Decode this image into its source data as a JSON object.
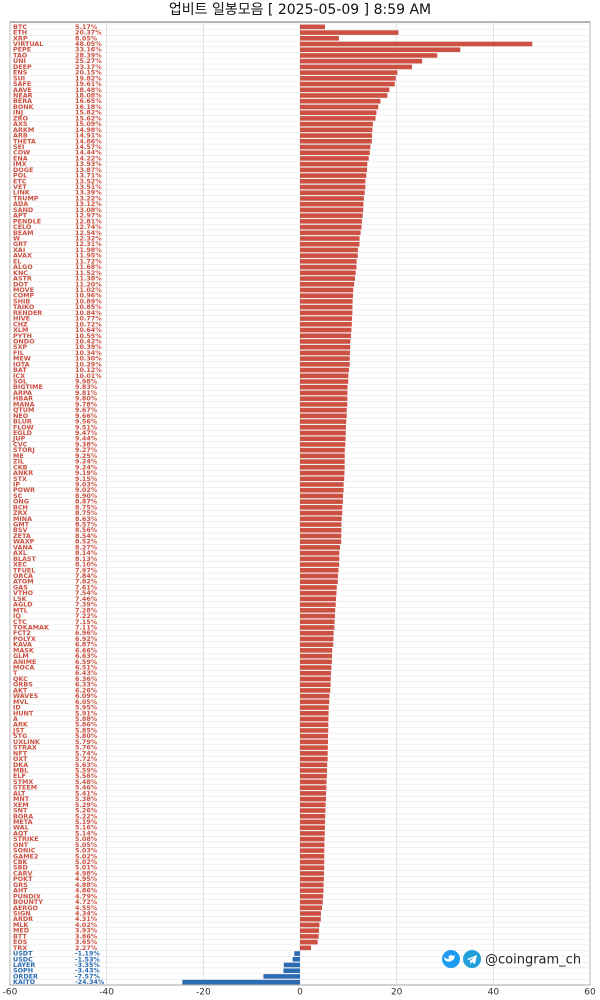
{
  "chart_data": {
    "type": "barh",
    "title": "업비트 일봉모음 [ 2025-05-09 ]  8:59 AM",
    "watermark": "@coingram_ch",
    "positive_color": "#cd5142",
    "negative_color": "#2b6cb3",
    "xlim": [
      -60,
      60
    ],
    "xticks": [
      -60,
      -40,
      -20,
      0,
      20,
      40,
      60
    ],
    "grid": true,
    "categories": [
      "BTC",
      "ETH",
      "XRP",
      "VIRTUAL",
      "PEPE",
      "TAO",
      "UNI",
      "DEEP",
      "ENS",
      "SUI",
      "SAFE",
      "AAVE",
      "NEAR",
      "BERA",
      "BONK",
      "INJ",
      "ZRO",
      "AXS",
      "ARKM",
      "ARB",
      "THETA",
      "SEI",
      "COW",
      "ENA",
      "IMX",
      "DOGE",
      "POL",
      "ETC",
      "VET",
      "LINK",
      "TRUMP",
      "ADA",
      "SAND",
      "APT",
      "PENDLE",
      "CELO",
      "BEAM",
      "W",
      "GRT",
      "XAI",
      "AVAX",
      "EL",
      "ALGO",
      "KNC",
      "ASTR",
      "DOT",
      "MOVE",
      "COMP",
      "SHIB",
      "TAIKO",
      "RENDER",
      "HIVE",
      "CHZ",
      "XLM",
      "PYTH",
      "ONDO",
      "SXP",
      "FIL",
      "MEW",
      "IOTA",
      "BAT",
      "ICX",
      "SOL",
      "BIGTIME",
      "ARPA",
      "HBAR",
      "MANA",
      "QTUM",
      "NEO",
      "BLUR",
      "FLOW",
      "EGLD",
      "JUP",
      "CVC",
      "STORJ",
      "ME",
      "ZIL",
      "CKB",
      "ANKR",
      "STX",
      "IP",
      "POWR",
      "SC",
      "ONG",
      "BCH",
      "ZRX",
      "MINA",
      "GMT",
      "BSV",
      "ZETA",
      "WAXP",
      "VANA",
      "AXL",
      "BLAST",
      "XEC",
      "TFUEL",
      "ORCA",
      "ATOM",
      "GAS",
      "VTHO",
      "LSK",
      "AGLD",
      "MTL",
      "IQ",
      "CTC",
      "TOKAMAK",
      "FCT2",
      "POLYX",
      "KAVA",
      "MASK",
      "GLM",
      "ANIME",
      "MOCA",
      "T",
      "QKC",
      "ORBS",
      "AKT",
      "WAVES",
      "MVL",
      "ID",
      "HUNT",
      "A",
      "ARK",
      "JST",
      "STG",
      "UXLINK",
      "STRAX",
      "NFT",
      "OXT",
      "DKA",
      "MBL",
      "ELF",
      "STMX",
      "STEEM",
      "ALT",
      "MNT",
      "XEM",
      "SNT",
      "BORA",
      "META",
      "WAL",
      "AQT",
      "STRIKE",
      "ONT",
      "SONIC",
      "GAME2",
      "CBK",
      "SBD",
      "CARV",
      "POKT",
      "GRS",
      "AHT",
      "PUNDIX",
      "BOUNTY",
      "AERGO",
      "SIGN",
      "ARDR",
      "MLK",
      "MED",
      "BTT",
      "EOS",
      "TRX",
      "USDT",
      "USDC",
      "LAYER",
      "SOPH",
      "ORDER",
      "KAITO"
    ],
    "values": [
      5.17,
      20.37,
      8.05,
      48.05,
      33.16,
      28.39,
      25.27,
      23.17,
      20.15,
      19.82,
      19.61,
      18.48,
      18.08,
      16.65,
      16.18,
      15.82,
      15.62,
      15.09,
      14.98,
      14.91,
      14.86,
      14.57,
      14.44,
      14.22,
      13.93,
      13.87,
      13.71,
      13.52,
      13.51,
      13.39,
      13.22,
      13.12,
      13.08,
      12.97,
      12.81,
      12.74,
      12.54,
      12.32,
      12.31,
      11.98,
      11.95,
      11.72,
      11.68,
      11.52,
      11.38,
      11.2,
      11.02,
      10.96,
      10.89,
      10.85,
      10.84,
      10.77,
      10.72,
      10.64,
      10.55,
      10.42,
      10.39,
      10.34,
      10.3,
      10.29,
      10.12,
      10.01,
      9.98,
      9.83,
      9.81,
      9.8,
      9.78,
      9.67,
      9.66,
      9.56,
      9.51,
      9.47,
      9.44,
      9.38,
      9.27,
      9.25,
      9.24,
      9.24,
      9.19,
      9.15,
      9.03,
      9.02,
      8.9,
      8.87,
      8.75,
      8.75,
      8.63,
      8.57,
      8.56,
      8.54,
      8.52,
      8.27,
      8.14,
      8.13,
      8.1,
      7.97,
      7.84,
      7.82,
      7.61,
      7.54,
      7.46,
      7.39,
      7.28,
      7.22,
      7.15,
      7.11,
      6.96,
      6.92,
      6.87,
      6.66,
      6.63,
      6.59,
      6.51,
      6.43,
      6.36,
      6.33,
      6.26,
      6.09,
      6.05,
      5.95,
      5.91,
      5.88,
      5.86,
      5.85,
      5.8,
      5.79,
      5.76,
      5.74,
      5.72,
      5.63,
      5.59,
      5.56,
      5.48,
      5.46,
      5.41,
      5.38,
      5.29,
      5.26,
      5.22,
      5.19,
      5.16,
      5.14,
      5.08,
      5.05,
      5.03,
      5.02,
      5.02,
      5.01,
      4.98,
      4.95,
      4.88,
      4.86,
      4.79,
      4.72,
      4.55,
      4.34,
      4.31,
      4.02,
      3.93,
      3.86,
      3.65,
      2.27,
      -1.19,
      -1.53,
      -3.35,
      -3.43,
      -7.57,
      -24.34
    ],
    "value_labels": [
      "5.17%",
      "20.37%",
      "8.05%",
      "48.05%",
      "33.16%",
      "28.39%",
      "25.27%",
      "23.17%",
      "20.15%",
      "19.82%",
      "19.61%",
      "18.48%",
      "18.08%",
      "16.65%",
      "16.18%",
      "15.82%",
      "15.62%",
      "15.09%",
      "14.98%",
      "14.91%",
      "14.86%",
      "14.57%",
      "14.44%",
      "14.22%",
      "13.93%",
      "13.87%",
      "13.71%",
      "13.52%",
      "13.51%",
      "13.39%",
      "13.22%",
      "13.12%",
      "13.08%",
      "12.97%",
      "12.81%",
      "12.74%",
      "12.54%",
      "12.32%",
      "12.31%",
      "11.98%",
      "11.95%",
      "11.72%",
      "11.68%",
      "11.52%",
      "11.38%",
      "11.20%",
      "11.02%",
      "10.96%",
      "10.89%",
      "10.85%",
      "10.84%",
      "10.77%",
      "10.72%",
      "10.64%",
      "10.55%",
      "10.42%",
      "10.39%",
      "10.34%",
      "10.30%",
      "10.29%",
      "10.12%",
      "10.01%",
      "9.98%",
      "9.83%",
      "9.81%",
      "9.80%",
      "9.78%",
      "9.67%",
      "9.66%",
      "9.56%",
      "9.51%",
      "9.47%",
      "9.44%",
      "9.38%",
      "9.27%",
      "9.25%",
      "9.24%",
      "9.24%",
      "9.19%",
      "9.15%",
      "9.03%",
      "9.02%",
      "8.90%",
      "8.87%",
      "8.75%",
      "8.75%",
      "8.63%",
      "8.57%",
      "8.56%",
      "8.54%",
      "8.52%",
      "8.27%",
      "8.14%",
      "8.13%",
      "8.10%",
      "7.97%",
      "7.84%",
      "7.82%",
      "7.61%",
      "7.54%",
      "7.46%",
      "7.39%",
      "7.28%",
      "7.22%",
      "7.15%",
      "7.11%",
      "6.96%",
      "6.92%",
      "6.87%",
      "6.66%",
      "6.63%",
      "6.59%",
      "6.51%",
      "6.43%",
      "6.36%",
      "6.33%",
      "6.26%",
      "6.09%",
      "6.05%",
      "5.95%",
      "5.91%",
      "5.88%",
      "5.86%",
      "5.85%",
      "5.80%",
      "5.79%",
      "5.76%",
      "5.74%",
      "5.72%",
      "5.63%",
      "5.59%",
      "5.56%",
      "5.48%",
      "5.46%",
      "5.41%",
      "5.38%",
      "5.29%",
      "5.26%",
      "5.22%",
      "5.19%",
      "5.16%",
      "5.14%",
      "5.08%",
      "5.05%",
      "5.03%",
      "5.02%",
      "5.02%",
      "5.01%",
      "4.98%",
      "4.95%",
      "4.88%",
      "4.86%",
      "4.79%",
      "4.72%",
      "4.55%",
      "4.34%",
      "4.31%",
      "4.02%",
      "3.93%",
      "3.86%",
      "3.65%",
      "2.27%",
      "-1.19%",
      "-1.53%",
      "-3.35%",
      "-3.43%",
      "-7.57%",
      "-24.34%"
    ]
  }
}
